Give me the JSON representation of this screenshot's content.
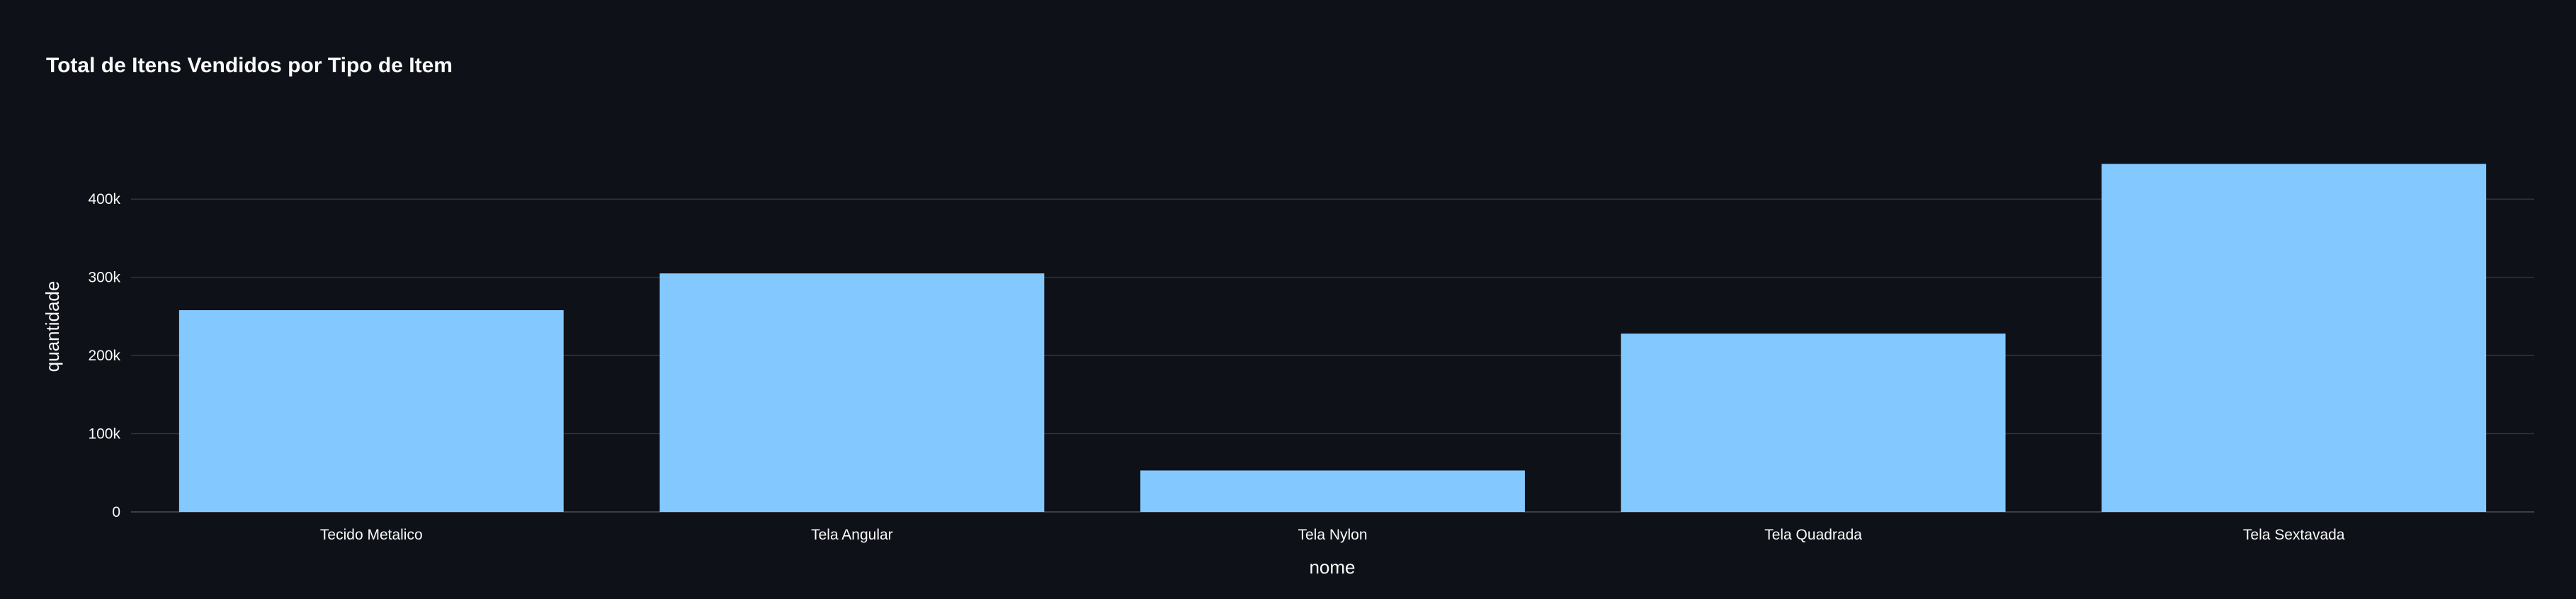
{
  "chart_data": {
    "type": "bar",
    "title": "Total de Itens Vendidos por Tipo de Item",
    "xlabel": "nome",
    "ylabel": "quantidade",
    "categories": [
      "Tecido Metalico",
      "Tela Angular",
      "Tela Nylon",
      "Tela Quadrada",
      "Tela Sextavada"
    ],
    "values": [
      258000,
      305000,
      53000,
      228000,
      445000
    ],
    "ylim": [
      0,
      450000
    ],
    "yticks": [
      0,
      100000,
      200000,
      300000,
      400000
    ],
    "ytick_labels": [
      "0",
      "100k",
      "200k",
      "300k",
      "400k"
    ],
    "grid": true,
    "bar_color": "#83c9ff",
    "background": "#0e1117"
  }
}
